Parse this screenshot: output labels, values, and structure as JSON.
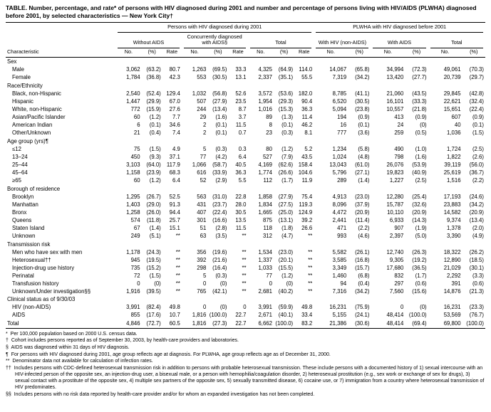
{
  "title": "TABLE. Number, percentage, and rate* of persons with HIV diagnosed during 2001 and number and percentage of persons living with HIV/AIDS (PLWHA) diagnosed before 2001, by selected characteristics — New York City†",
  "table": {
    "characteristic_header": "Characteristic",
    "group_left": "Persons with HIV diagnosed during 2001",
    "group_right": "PLWHA with HIV diagnosed before 2001",
    "subgroups_left": [
      "Without AIDS",
      "Concurrently diagnosed with AIDS§",
      "Total"
    ],
    "subgroups_right": [
      "With HIV (non-AIDS)",
      "With AIDS",
      "Total"
    ],
    "col_labels_left": [
      "No.",
      "(%)",
      "Rate"
    ],
    "col_labels_right": [
      "No.",
      "(%)"
    ],
    "sections": [
      {
        "label": "Sex",
        "rows": [
          {
            "label": "Male",
            "cells": [
              "3,062",
              "(63.2)",
              "80.7",
              "1,263",
              "(69.5)",
              "33.3",
              "4,325",
              "(64.9)",
              "114.0",
              "14,067",
              "(65.8)",
              "34,994",
              "(72.3)",
              "49,061",
              "(70.3)"
            ]
          },
          {
            "label": "Female",
            "cells": [
              "1,784",
              "(36.8)",
              "42.3",
              "553",
              "(30.5)",
              "13.1",
              "2,337",
              "(35.1)",
              "55.5",
              "7,319",
              "(34.2)",
              "13,420",
              "(27.7)",
              "20,739",
              "(29.7)"
            ]
          }
        ]
      },
      {
        "label": "Race/Ethnicity",
        "rows": [
          {
            "label": "Black, non-Hispanic",
            "cells": [
              "2,540",
              "(52.4)",
              "129.4",
              "1,032",
              "(56.8)",
              "52.6",
              "3,572",
              "(53.6)",
              "182.0",
              "8,785",
              "(41.1)",
              "21,060",
              "(43.5)",
              "29,845",
              "(42.8)"
            ]
          },
          {
            "label": "Hispanic",
            "cells": [
              "1,447",
              "(29.9)",
              "67.0",
              "507",
              "(27.9)",
              "23.5",
              "1,954",
              "(29.3)",
              "90.4",
              "6,520",
              "(30.5)",
              "16,101",
              "(33.3)",
              "22,621",
              "(32.4)"
            ]
          },
          {
            "label": "White, non-Hispanic",
            "cells": [
              "772",
              "(15.9)",
              "27.6",
              "244",
              "(13.4)",
              "8.7",
              "1,016",
              "(15.3)",
              "36.3",
              "5,094",
              "(23.8)",
              "10,557",
              "(21.8)",
              "15,651",
              "(22.4)"
            ]
          },
          {
            "label": "Asian/Pacific Islander",
            "cells": [
              "60",
              "(1.2)",
              "7.7",
              "29",
              "(1.6)",
              "3.7",
              "89",
              "(1.3)",
              "11.4",
              "194",
              "(0.9)",
              "413",
              "(0.9)",
              "607",
              "(0.9)"
            ]
          },
          {
            "label": "American Indian",
            "cells": [
              "6",
              "(0.1)",
              "34.6",
              "2",
              "(0.1)",
              "11.5",
              "8",
              "(0.1)",
              "46.2",
              "16",
              "(0.1)",
              "24",
              "(0)",
              "40",
              "(0.1)"
            ]
          },
          {
            "label": "Other/Unknown",
            "cells": [
              "21",
              "(0.4)",
              "7.4",
              "2",
              "(0.1)",
              "0.7",
              "23",
              "(0.3)",
              "8.1",
              "777",
              "(3.6)",
              "259",
              "(0.5)",
              "1,036",
              "(1.5)"
            ]
          }
        ]
      },
      {
        "label": "Age group (yrs)¶",
        "rows": [
          {
            "label": "≤12",
            "cells": [
              "75",
              "(1.5)",
              "4.9",
              "5",
              "(0.3)",
              "0.3",
              "80",
              "(1.2)",
              "5.2",
              "1,234",
              "(5.8)",
              "490",
              "(1.0)",
              "1,724",
              "(2.5)"
            ]
          },
          {
            "label": "13–24",
            "cells": [
              "450",
              "(9.3)",
              "37.1",
              "77",
              "(4.2)",
              "6.4",
              "527",
              "(7.9)",
              "43.5",
              "1,024",
              "(4.8)",
              "798",
              "(1.6)",
              "1,822",
              "(2.6)"
            ]
          },
          {
            "label": "25–44",
            "cells": [
              "3,103",
              "(64.0)",
              "117.9",
              "1,066",
              "(58.7)",
              "40.5",
              "4,169",
              "(62.6)",
              "158.4",
              "13,043",
              "(61.0)",
              "26,076",
              "(53.9)",
              "39,119",
              "(56.0)"
            ]
          },
          {
            "label": "45–64",
            "cells": [
              "1,158",
              "(23.9)",
              "68.3",
              "616",
              "(33.9)",
              "36.3",
              "1,774",
              "(26.6)",
              "104.6",
              "5,796",
              "(27.1)",
              "19,823",
              "(40.9)",
              "25,619",
              "(36.7)"
            ]
          },
          {
            "label": "≥65",
            "cells": [
              "60",
              "(1.2)",
              "6.4",
              "52",
              "(2.9)",
              "5.5",
              "112",
              "(1.7)",
              "11.9",
              "289",
              "(1.4)",
              "1,227",
              "(2.5)",
              "1,516",
              "(2.2)"
            ]
          }
        ]
      },
      {
        "label": "Borough of residence",
        "rows": [
          {
            "label": "Brooklyn",
            "cells": [
              "1,295",
              "(26.7)",
              "52.5",
              "563",
              "(31.0)",
              "22.8",
              "1,858",
              "(27.9)",
              "75.4",
              "4,913",
              "(23.0)",
              "12,280",
              "(25.4)",
              "17,193",
              "(24.6)"
            ]
          },
          {
            "label": "Manhattan",
            "cells": [
              "1,403",
              "(29.0)",
              "91.3",
              "431",
              "(23.7)",
              "28.0",
              "1,834",
              "(27.5)",
              "119.3",
              "8,096",
              "(37.9)",
              "15,787",
              "(32.6)",
              "23,883",
              "(34.2)"
            ]
          },
          {
            "label": "Bronx",
            "cells": [
              "1,258",
              "(26.0)",
              "94.4",
              "407",
              "(22.4)",
              "30.5",
              "1,665",
              "(25.0)",
              "124.9",
              "4,472",
              "(20.9)",
              "10,110",
              "(20.9)",
              "14,582",
              "(20.9)"
            ]
          },
          {
            "label": "Queens",
            "cells": [
              "574",
              "(11.8)",
              "25.7",
              "301",
              "(16.6)",
              "13.5",
              "875",
              "(13.1)",
              "39.2",
              "2,441",
              "(11.4)",
              "6,933",
              "(14.3)",
              "9,374",
              "(13.4)"
            ]
          },
          {
            "label": "Staten Island",
            "cells": [
              "67",
              "(1.4)",
              "15.1",
              "51",
              "(2.8)",
              "11.5",
              "118",
              "(1.8)",
              "26.6",
              "471",
              "(2.2)",
              "907",
              "(1.9)",
              "1,378",
              "(2.0)"
            ]
          },
          {
            "label": "Unknown",
            "cells": [
              "249",
              "(5.1)",
              "**",
              "63",
              "(3.5)",
              "**",
              "312",
              "(4.7)",
              "**",
              "993",
              "(4.6)",
              "2,397",
              "(5.0)",
              "3,390",
              "(4.9)"
            ]
          }
        ]
      },
      {
        "label": "Transmission risk",
        "rows": [
          {
            "label": "Men who have sex with men",
            "cells": [
              "1,178",
              "(24.3)",
              "**",
              "356",
              "(19.6)",
              "**",
              "1,534",
              "(23.0)",
              "**",
              "5,582",
              "(26.1)",
              "12,740",
              "(26.3)",
              "18,322",
              "(26.2)"
            ]
          },
          {
            "label": "Heterosexual††",
            "cells": [
              "945",
              "(19.5)",
              "**",
              "392",
              "(21.6)",
              "**",
              "1,337",
              "(20.1)",
              "**",
              "3,585",
              "(16.8)",
              "9,305",
              "(19.2)",
              "12,890",
              "(18.5)"
            ]
          },
          {
            "label": "Injection-drug use history",
            "cells": [
              "735",
              "(15.2)",
              "**",
              "298",
              "(16.4)",
              "**",
              "1,033",
              "(15.5)",
              "**",
              "3,349",
              "(15.7)",
              "17,680",
              "(36.5)",
              "21,029",
              "(30.1)"
            ]
          },
          {
            "label": "Perinatal",
            "cells": [
              "72",
              "(1.5)",
              "**",
              "5",
              "(0.3)",
              "**",
              "77",
              "(1.2)",
              "**",
              "1,460",
              "(6.8)",
              "832",
              "(1.7)",
              "2,292",
              "(3.3)"
            ]
          },
          {
            "label": "Transfusion history",
            "cells": [
              "0",
              "(0)",
              "**",
              "0",
              "(0)",
              "**",
              "0",
              "(0)",
              "**",
              "94",
              "(0.4)",
              "297",
              "(0.6)",
              "391",
              "(0.6)"
            ]
          },
          {
            "label": "Unknown/Under investigation§§",
            "cells": [
              "1,916",
              "(39.5)",
              "**",
              "765",
              "(42.1)",
              "**",
              "2,681",
              "(40.2)",
              "**",
              "7,316",
              "(34.2)",
              "7,560",
              "(15.6)",
              "14,876",
              "(21.3)"
            ]
          }
        ]
      },
      {
        "label": "Clinical status as of 9/30/03",
        "rows": [
          {
            "label": "HIV (non-AIDS)",
            "cells": [
              "3,991",
              "(82.4)",
              "49.8",
              "0",
              "(0)",
              "0",
              "3,991",
              "(59.9)",
              "49.8",
              "16,231",
              "(75.9)",
              "0",
              "(0)",
              "16,231",
              "(23.3)"
            ]
          },
          {
            "label": "AIDS",
            "cells": [
              "855",
              "(17.6)",
              "10.7",
              "1,816",
              "(100.0)",
              "22.7",
              "2,671",
              "(40.1)",
              "33.4",
              "5,155",
              "(24.1)",
              "48,414",
              "(100.0)",
              "53,569",
              "(76.7)"
            ]
          }
        ]
      }
    ],
    "total_row": {
      "label": "Total",
      "cells": [
        "4,846",
        "(72.7)",
        "60.5",
        "1,816",
        "(27.3)",
        "22.7",
        "6,662",
        "(100.0)",
        "83.2",
        "21,386",
        "(30.6)",
        "48,414",
        "(69.4)",
        "69,800",
        "(100.0)"
      ]
    }
  },
  "footnotes": [
    {
      "marker": "*",
      "text": "Per 100,000 population based on 2000 U.S. census data."
    },
    {
      "marker": "†",
      "text": "Cohort includes persons reported as of September 30, 2003, by health-care providers and laboratories."
    },
    {
      "marker": "§",
      "text": "AIDS was diagnosed within 31 days of HIV diagnosis."
    },
    {
      "marker": "¶",
      "text": "For persons with HIV diagnosed during 2001, age group reflects age at diagnosis. For PLWHA, age group reflects age as of December 31, 2000."
    },
    {
      "marker": "**",
      "text": "Denominator data not available for calculation of infection rates."
    },
    {
      "marker": "††",
      "text": "Includes persons with CDC-defined heterosexual transmission risk in addition to persons with probable heterosexual transmission. These include persons with a documented history of 1) sexual intercourse with an HIV-infected person of the opposite sex, an injection-drug user, a bisexual male, or a person with hemophilia/coagulation disorder, 2) heterosexual prostitution (e.g., sex work or exchange of sex for drugs), 3) sexual contact with a prostitute of the opposite sex, 4) multiple sex partners of the opposite sex, 5) sexually transmitted disease, 6) cocaine use, or 7) immigration from a country where heterosexual transmission of HIV predominates."
    },
    {
      "marker": "§§",
      "text": "Includes persons with no risk data reported by health-care provider and/or for whom an expanded investigation has not been completed."
    }
  ]
}
